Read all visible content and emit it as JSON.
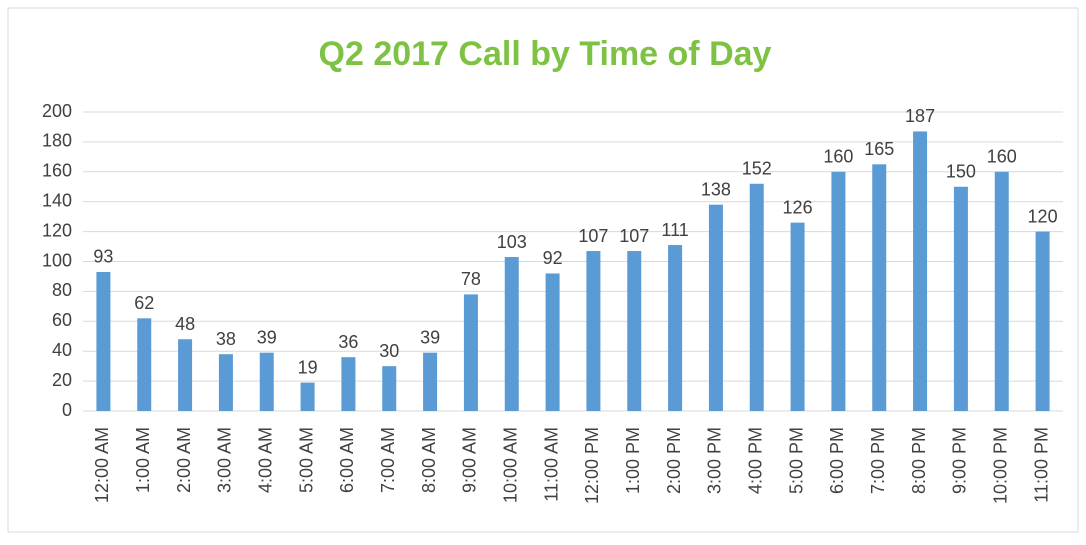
{
  "chart_data": {
    "type": "bar",
    "title": "Q2 2017 Call by Time of Day",
    "categories": [
      "12:00 AM",
      "1:00 AM",
      "2:00 AM",
      "3:00 AM",
      "4:00 AM",
      "5:00 AM",
      "6:00 AM",
      "7:00 AM",
      "8:00 AM",
      "9:00 AM",
      "10:00 AM",
      "11:00 AM",
      "12:00 PM",
      "1:00 PM",
      "2:00 PM",
      "3:00 PM",
      "4:00 PM",
      "5:00 PM",
      "6:00 PM",
      "7:00 PM",
      "8:00 PM",
      "9:00 PM",
      "10:00 PM",
      "11:00 PM"
    ],
    "values": [
      93,
      62,
      48,
      38,
      39,
      19,
      36,
      30,
      39,
      78,
      103,
      92,
      107,
      107,
      111,
      138,
      152,
      126,
      160,
      165,
      187,
      150,
      160,
      120
    ],
    "color": "#5b9bd5",
    "title_color": "#7dc242",
    "ylim": [
      0,
      200
    ],
    "yticks": [
      0,
      20,
      40,
      60,
      80,
      100,
      120,
      140,
      160,
      180,
      200
    ],
    "grid": true
  }
}
